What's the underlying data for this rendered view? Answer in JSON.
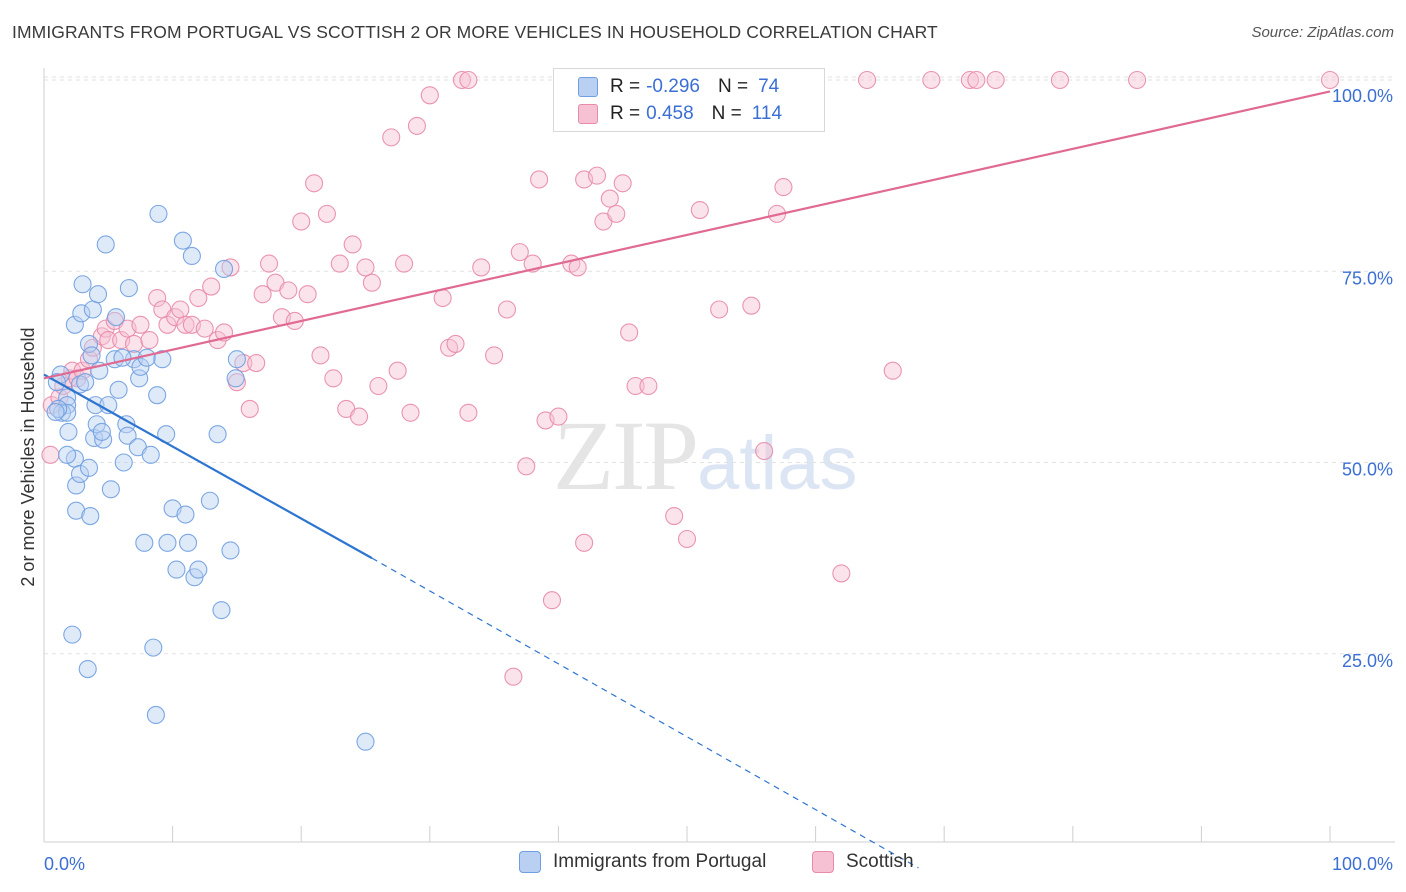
{
  "title": "IMMIGRANTS FROM PORTUGAL VS SCOTTISH 2 OR MORE VEHICLES IN HOUSEHOLD CORRELATION CHART",
  "source": "Source: ZipAtlas.com",
  "watermark": {
    "zip": "ZIP",
    "atlas": "atlas"
  },
  "colors": {
    "blue": "#6f9fe0",
    "blue_fill": "#b9d0f2",
    "blue_line": "#2e75d0",
    "pink": "#e88aa8",
    "pink_fill": "#f6c2d3",
    "pink_line": "#e06a92",
    "axis_label": "#3b6fd4",
    "grid": "#e2e2e2"
  },
  "legend": {
    "rows": [
      {
        "r_label": "R =",
        "r_value": "-0.296",
        "n_label": "N =",
        "n_value": "74"
      },
      {
        "r_label": "R =",
        "r_value": "0.458",
        "n_label": "N =",
        "n_value": "114"
      }
    ]
  },
  "bottom_legend": [
    "Immigrants from Portugal",
    "Scottish"
  ],
  "chart_data": {
    "type": "scatter",
    "title": "IMMIGRANTS FROM PORTUGAL VS SCOTTISH 2 OR MORE VEHICLES IN HOUSEHOLD CORRELATION CHART",
    "xlabel": "",
    "ylabel": "2 or more Vehicles in Household",
    "xlim": [
      0,
      100
    ],
    "ylim": [
      0,
      102
    ],
    "x_tick_labels": [
      "0.0%",
      "100.0%"
    ],
    "y_tick_labels": [
      "100.0%",
      "75.0%",
      "50.0%",
      "25.0%"
    ],
    "y_ticks": [
      100,
      75,
      50,
      25
    ],
    "grid": true,
    "series": [
      {
        "name": "Immigrants from Portugal",
        "r": -0.296,
        "n": 74,
        "trend": {
          "x0": 0,
          "y0": 61.5,
          "x1": 25.5,
          "y1": 37.5,
          "dash_to_x": 68,
          "dash_to_y": -3
        },
        "points": [
          [
            1.3,
            61.5
          ],
          [
            1.8,
            58.5
          ],
          [
            1.8,
            57.5
          ],
          [
            1.4,
            56.5
          ],
          [
            1.8,
            56.5
          ],
          [
            1.0,
            60.5
          ],
          [
            1.1,
            57.0
          ],
          [
            0.9,
            56.6
          ],
          [
            1.9,
            54.0
          ],
          [
            2.4,
            50.5
          ],
          [
            2.5,
            47.0
          ],
          [
            2.8,
            48.5
          ],
          [
            3.5,
            49.3
          ],
          [
            3.9,
            53.2
          ],
          [
            2.5,
            43.7
          ],
          [
            3.6,
            43.0
          ],
          [
            2.8,
            60.2
          ],
          [
            3.2,
            60.5
          ],
          [
            3.5,
            65.5
          ],
          [
            3.7,
            64.0
          ],
          [
            2.4,
            68.0
          ],
          [
            2.9,
            69.5
          ],
          [
            3.8,
            70.0
          ],
          [
            4.3,
            62.0
          ],
          [
            3.0,
            73.3
          ],
          [
            4.2,
            72.0
          ],
          [
            4.8,
            78.5
          ],
          [
            4.0,
            57.5
          ],
          [
            4.1,
            55.0
          ],
          [
            4.6,
            53.0
          ],
          [
            4.5,
            54.0
          ],
          [
            5.2,
            46.5
          ],
          [
            5.5,
            63.5
          ],
          [
            5.6,
            69.0
          ],
          [
            5.8,
            59.5
          ],
          [
            6.2,
            50.0
          ],
          [
            6.4,
            55.0
          ],
          [
            6.5,
            53.5
          ],
          [
            6.6,
            72.8
          ],
          [
            7.0,
            63.5
          ],
          [
            7.3,
            52.0
          ],
          [
            7.4,
            61.0
          ],
          [
            7.5,
            62.5
          ],
          [
            8.0,
            63.7
          ],
          [
            8.3,
            51.0
          ],
          [
            8.5,
            25.8
          ],
          [
            8.7,
            17.0
          ],
          [
            8.8,
            58.8
          ],
          [
            9.2,
            63.5
          ],
          [
            9.5,
            53.7
          ],
          [
            9.6,
            39.5
          ],
          [
            8.9,
            82.5
          ],
          [
            10.0,
            44.0
          ],
          [
            10.3,
            36.0
          ],
          [
            11.0,
            43.2
          ],
          [
            11.2,
            39.5
          ],
          [
            10.8,
            79.0
          ],
          [
            11.5,
            77.0
          ],
          [
            11.7,
            35.0
          ],
          [
            12.0,
            36.0
          ],
          [
            12.9,
            45.0
          ],
          [
            13.5,
            53.7
          ],
          [
            13.8,
            30.7
          ],
          [
            14.0,
            75.3
          ],
          [
            14.5,
            38.5
          ],
          [
            14.9,
            61.0
          ],
          [
            15.0,
            63.5
          ],
          [
            25.0,
            13.5
          ],
          [
            2.2,
            27.5
          ],
          [
            3.4,
            23.0
          ],
          [
            7.8,
            39.5
          ],
          [
            1.8,
            51.0
          ],
          [
            5.0,
            57.5
          ],
          [
            6.1,
            63.7
          ]
        ]
      },
      {
        "name": "Scottish",
        "r": 0.458,
        "n": 114,
        "trend": {
          "x0": 0,
          "y0": 61.0,
          "x1": 100,
          "y1": 98.5
        },
        "points": [
          [
            0.5,
            51.0
          ],
          [
            0.6,
            57.5
          ],
          [
            1.2,
            58.5
          ],
          [
            1.5,
            60.0
          ],
          [
            2.0,
            61.0
          ],
          [
            2.2,
            62.0
          ],
          [
            2.6,
            61.0
          ],
          [
            3.0,
            62.0
          ],
          [
            3.5,
            63.5
          ],
          [
            3.8,
            65.0
          ],
          [
            4.5,
            66.5
          ],
          [
            4.8,
            67.5
          ],
          [
            5.0,
            66.0
          ],
          [
            5.5,
            68.5
          ],
          [
            6.0,
            66.0
          ],
          [
            6.5,
            67.5
          ],
          [
            7.0,
            65.5
          ],
          [
            7.5,
            68.0
          ],
          [
            8.2,
            66.0
          ],
          [
            8.8,
            71.5
          ],
          [
            9.2,
            70.0
          ],
          [
            9.6,
            68.0
          ],
          [
            10.2,
            69.0
          ],
          [
            10.6,
            70.0
          ],
          [
            11.0,
            68.0
          ],
          [
            11.5,
            68.0
          ],
          [
            12.0,
            71.5
          ],
          [
            12.5,
            67.5
          ],
          [
            13.0,
            73.0
          ],
          [
            13.5,
            66.0
          ],
          [
            14.0,
            67.0
          ],
          [
            14.5,
            75.5
          ],
          [
            15.0,
            60.5
          ],
          [
            15.5,
            63.0
          ],
          [
            16.0,
            57.0
          ],
          [
            16.5,
            63.0
          ],
          [
            17.0,
            72.0
          ],
          [
            17.5,
            76.0
          ],
          [
            18.0,
            73.5
          ],
          [
            18.5,
            69.0
          ],
          [
            19.0,
            72.5
          ],
          [
            19.5,
            68.5
          ],
          [
            20.0,
            81.5
          ],
          [
            20.5,
            72.0
          ],
          [
            21.0,
            86.5
          ],
          [
            21.5,
            64.0
          ],
          [
            22.0,
            82.5
          ],
          [
            22.5,
            61.0
          ],
          [
            23.0,
            76.0
          ],
          [
            23.5,
            57.0
          ],
          [
            24.0,
            78.5
          ],
          [
            24.5,
            56.0
          ],
          [
            25.0,
            75.5
          ],
          [
            25.5,
            73.5
          ],
          [
            26.0,
            60.0
          ],
          [
            27.0,
            92.5
          ],
          [
            27.5,
            62.0
          ],
          [
            28.0,
            76.0
          ],
          [
            28.5,
            56.5
          ],
          [
            29.0,
            94.0
          ],
          [
            30.0,
            98.0
          ],
          [
            31.0,
            71.5
          ],
          [
            31.5,
            65.0
          ],
          [
            32.0,
            65.5
          ],
          [
            32.5,
            100.0
          ],
          [
            33.0,
            100.0
          ],
          [
            34.0,
            75.5
          ],
          [
            35.0,
            64.0
          ],
          [
            36.0,
            70.0
          ],
          [
            37.0,
            77.5
          ],
          [
            37.5,
            49.5
          ],
          [
            38.0,
            76.0
          ],
          [
            38.5,
            87.0
          ],
          [
            39.0,
            55.5
          ],
          [
            40.0,
            56.0
          ],
          [
            41.0,
            76.0
          ],
          [
            41.5,
            75.5
          ],
          [
            42.0,
            87.0
          ],
          [
            43.0,
            87.5
          ],
          [
            43.5,
            81.5
          ],
          [
            44.0,
            84.5
          ],
          [
            44.5,
            82.5
          ],
          [
            45.0,
            86.5
          ],
          [
            45.5,
            67.0
          ],
          [
            46.0,
            60.0
          ],
          [
            47.0,
            60.0
          ],
          [
            48.0,
            100.0
          ],
          [
            49.0,
            43.0
          ],
          [
            50.0,
            40.0
          ],
          [
            51.0,
            83.0
          ],
          [
            52.5,
            70.0
          ],
          [
            54.0,
            100.0
          ],
          [
            55.0,
            70.5
          ],
          [
            56.0,
            51.5
          ],
          [
            57.0,
            82.5
          ],
          [
            57.5,
            86.0
          ],
          [
            59.0,
            100.0
          ],
          [
            60.0,
            100.0
          ],
          [
            62.0,
            35.5
          ],
          [
            64.0,
            100.0
          ],
          [
            66.0,
            62.0
          ],
          [
            69.0,
            100.0
          ],
          [
            72.0,
            100.0
          ],
          [
            72.5,
            100.0
          ],
          [
            74.0,
            100.0
          ],
          [
            79.0,
            100.0
          ],
          [
            85.0,
            100.0
          ],
          [
            100.0,
            100.0
          ],
          [
            41.5,
            100.0
          ],
          [
            33.0,
            56.5
          ],
          [
            36.5,
            22.0
          ],
          [
            39.5,
            32.0
          ],
          [
            42.0,
            39.5
          ],
          [
            48.5,
            100.0
          ]
        ]
      }
    ]
  }
}
